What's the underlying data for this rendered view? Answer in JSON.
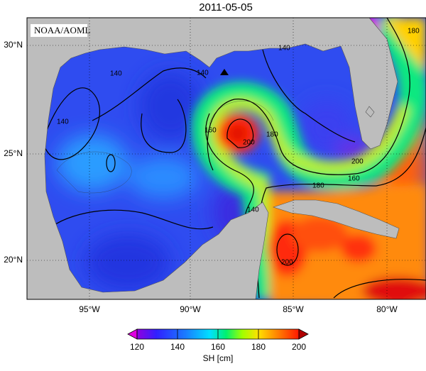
{
  "title": "2011-05-05",
  "credit": "NOAA/AOML",
  "lat_labels": [
    "30°N",
    "25°N",
    "20°N"
  ],
  "lon_labels": [
    "95°W",
    "90°W",
    "85°W",
    "80°W"
  ],
  "contour_labels": [
    "140",
    "140",
    "140",
    "160",
    "180",
    "200",
    "180",
    "160",
    "200",
    "140",
    "180",
    "200",
    "140"
  ],
  "colorbar": {
    "label": "SH [cm]",
    "lim": [
      120,
      200
    ],
    "ticks": [
      120,
      140,
      160,
      180,
      200
    ]
  }
}
